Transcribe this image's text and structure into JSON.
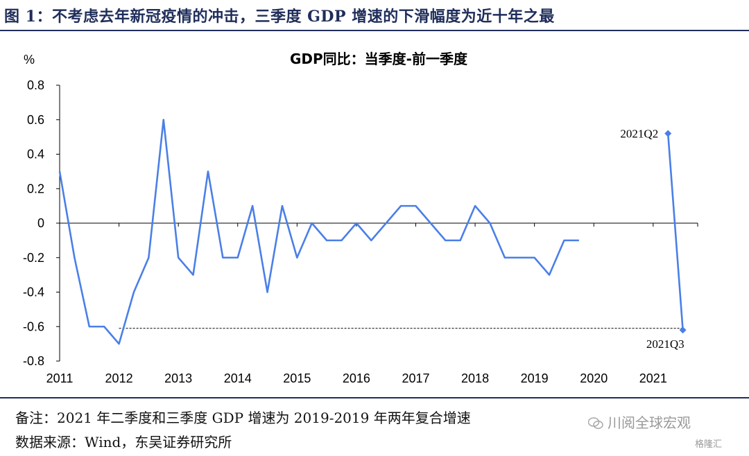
{
  "figure": {
    "title": "图 1：不考虑去年新冠疫情的冲击，三季度 GDP 增速的下滑幅度为近十年之最",
    "note": "备注：2021 年二季度和三季度 GDP 增速为 2019-2019 年两年复合增速",
    "source": "数据来源：Wind，东吴证券研究所",
    "watermark": "川阅全球宏观",
    "watermark2": "格隆汇"
  },
  "chart_data": {
    "type": "line",
    "title": "GDP同比：当季度-前一季度",
    "ylabel": "%",
    "xlabel": "",
    "ylim": [
      -0.8,
      0.8
    ],
    "yticks": [
      "0.8",
      "0.6",
      "0.4",
      "0.2",
      "0",
      "-0.2",
      "-0.4",
      "-0.6",
      "-0.8"
    ],
    "xlim": [
      2011,
      2021.75
    ],
    "xticks": [
      "2011",
      "2012",
      "2013",
      "2014",
      "2015",
      "2016",
      "2017",
      "2018",
      "2019",
      "2020",
      "2021"
    ],
    "grid": false,
    "line_color": "#4a7fe8",
    "series": [
      {
        "x": [
          2011.0,
          2011.25,
          2011.5,
          2011.75,
          2012.0,
          2012.25,
          2012.5,
          2012.75,
          2013.0,
          2013.25,
          2013.5,
          2013.75,
          2014.0,
          2014.25,
          2014.5,
          2014.75,
          2015.0,
          2015.25,
          2015.5,
          2015.75,
          2016.0,
          2016.25,
          2016.5,
          2016.75,
          2017.0,
          2017.25,
          2017.5,
          2017.75,
          2018.0,
          2018.25,
          2018.5,
          2018.75,
          2019.0,
          2019.25,
          2019.5,
          2019.75
        ],
        "values": [
          0.3,
          -0.2,
          -0.6,
          -0.6,
          -0.7,
          -0.4,
          -0.2,
          0.6,
          -0.2,
          -0.3,
          0.3,
          -0.2,
          -0.2,
          0.1,
          -0.4,
          0.1,
          -0.2,
          0.0,
          -0.1,
          -0.1,
          0.0,
          -0.1,
          0.0,
          0.1,
          0.1,
          0.0,
          -0.1,
          -0.1,
          0.1,
          0.0,
          -0.2,
          -0.2,
          -0.2,
          -0.3,
          -0.1,
          -0.1
        ]
      },
      {
        "x": [
          2021.25,
          2021.5
        ],
        "values": [
          0.52,
          -0.62
        ],
        "labels": [
          "2021Q2",
          "2021Q3"
        ]
      }
    ],
    "reference_line": {
      "y": -0.61,
      "from_x": 2012.0,
      "to_x": 2021.5,
      "style": "dashed"
    }
  }
}
